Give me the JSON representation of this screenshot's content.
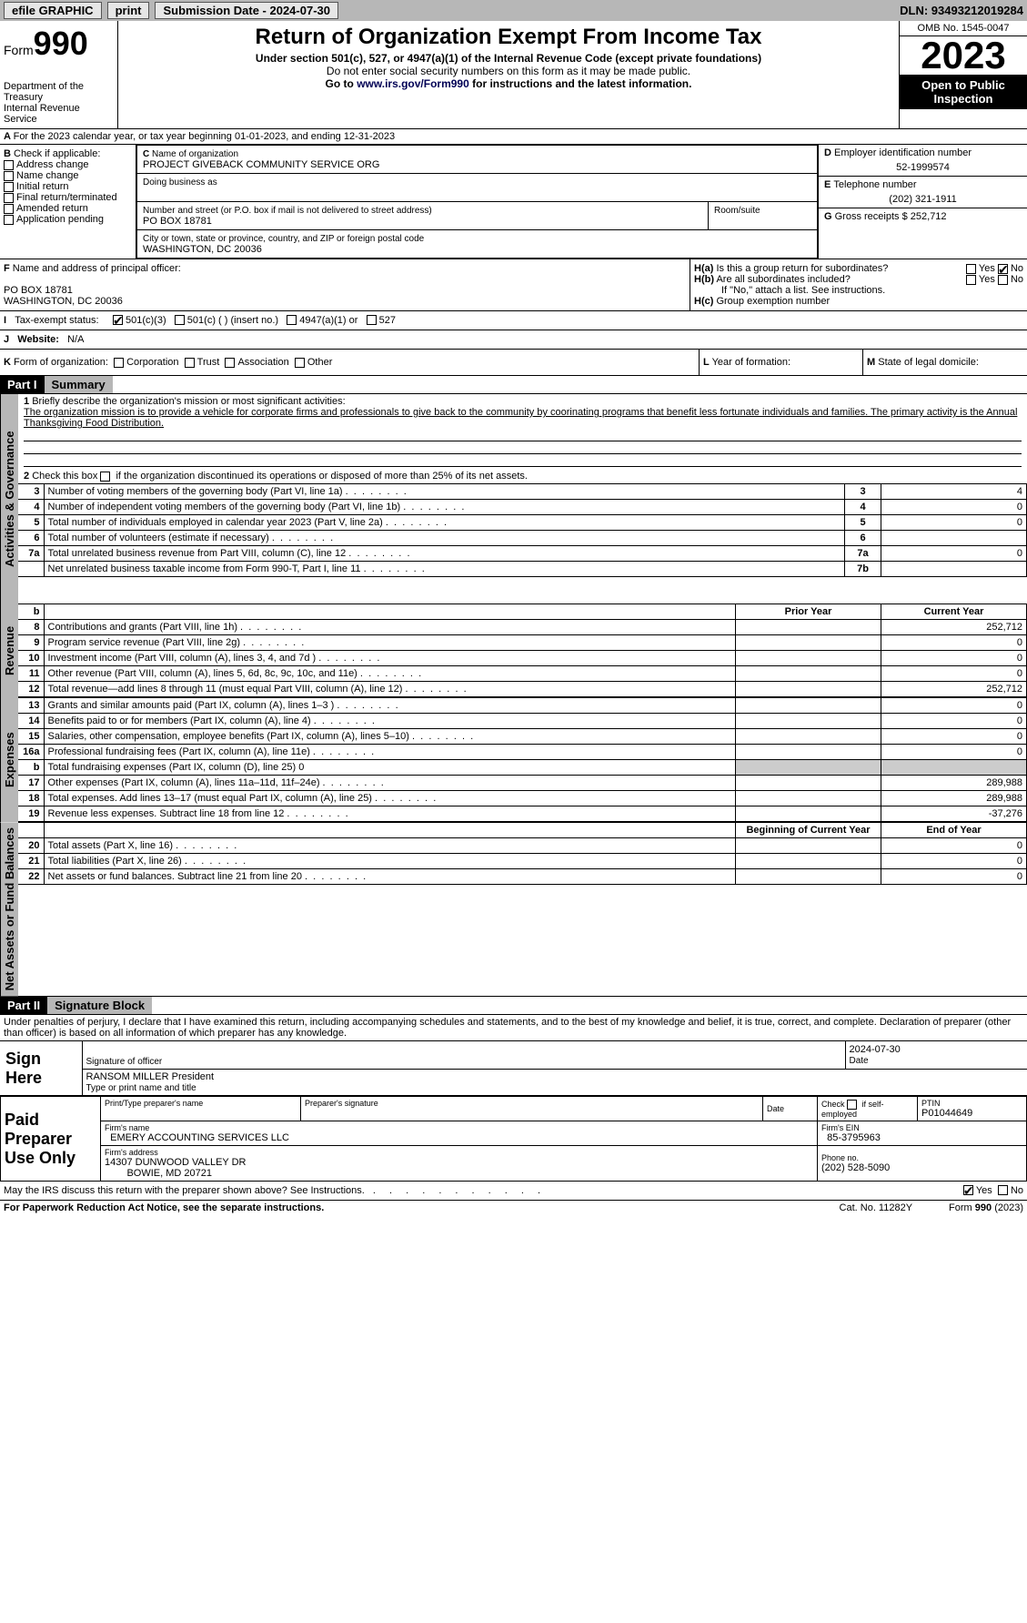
{
  "topbar": {
    "efile": "efile GRAPHIC",
    "print": "print",
    "sub_label": "Submission Date - 2024-07-30",
    "dln": "DLN: 93493212019284"
  },
  "header": {
    "form_label": "Form",
    "form_num": "990",
    "dept": "Department of the Treasury",
    "irs": "Internal Revenue Service",
    "title": "Return of Organization Exempt From Income Tax",
    "sub1": "Under section 501(c), 527, or 4947(a)(1) of the Internal Revenue Code (except private foundations)",
    "sub2": "Do not enter social security numbers on this form as it may be made public.",
    "sub3_pre": "Go to ",
    "sub3_link": "www.irs.gov/Form990",
    "sub3_post": " for instructions and the latest information.",
    "omb": "OMB No. 1545-0047",
    "year": "2023",
    "open": "Open to Public Inspection"
  },
  "A": {
    "text": "For the 2023 calendar year, or tax year beginning 01-01-2023",
    "end": ", and ending 12-31-2023"
  },
  "B": {
    "label": "Check if applicable:",
    "items": [
      "Address change",
      "Name change",
      "Initial return",
      "Final return/terminated",
      "Amended return",
      "Application pending"
    ]
  },
  "C": {
    "name_lbl": "Name of organization",
    "name": "PROJECT GIVEBACK COMMUNITY SERVICE ORG",
    "dba_lbl": "Doing business as",
    "street_lbl": "Number and street (or P.O. box if mail is not delivered to street address)",
    "street": "PO BOX 18781",
    "room_lbl": "Room/suite",
    "city_lbl": "City or town, state or province, country, and ZIP or foreign postal code",
    "city": "WASHINGTON, DC  20036"
  },
  "D": {
    "lbl": "Employer identification number",
    "val": "52-1999574"
  },
  "E": {
    "lbl": "Telephone number",
    "val": "(202) 321-1911"
  },
  "G": {
    "lbl": "Gross receipts $",
    "val": "252,712"
  },
  "F": {
    "lbl": "Name and address of principal officer:",
    "l1": "PO BOX 18781",
    "l2": "WASHINGTON, DC  20036"
  },
  "H": {
    "a": "Is this a group return for subordinates?",
    "b": "Are all subordinates included?",
    "note": "If \"No,\" attach a list. See instructions.",
    "c": "Group exemption number",
    "yes": "Yes",
    "no": "No"
  },
  "I": {
    "lbl": "Tax-exempt status:",
    "o1": "501(c)(3)",
    "o2": "501(c) (  ) (insert no.)",
    "o3": "4947(a)(1) or",
    "o4": "527"
  },
  "J": {
    "lbl": "Website:",
    "val": "N/A"
  },
  "K": {
    "lbl": "Form of organization:",
    "o1": "Corporation",
    "o2": "Trust",
    "o3": "Association",
    "o4": "Other"
  },
  "L": {
    "lbl": "Year of formation:"
  },
  "M": {
    "lbl": "State of legal domicile:"
  },
  "part1": {
    "hdr": "Part I",
    "title": "Summary",
    "l1_lbl": "Briefly describe the organization's mission or most significant activities:",
    "l1_txt": "The organization mission is to provide a vehicle for corporate firms and professionals to give back to the community by coorinating programs that benefit less fortunate individuals and families. The primary activity is the Annual Thanksgiving Food Distribution.",
    "l2": "Check this box      if the organization discontinued its operations or disposed of more than 25% of its net assets.",
    "tabs": {
      "ag": "Activities & Governance",
      "rev": "Revenue",
      "exp": "Expenses",
      "na": "Net Assets or Fund Balances"
    },
    "rows_ag": [
      {
        "n": "3",
        "d": "Number of voting members of the governing body (Part VI, line 1a)",
        "box": "3",
        "v": "4"
      },
      {
        "n": "4",
        "d": "Number of independent voting members of the governing body (Part VI, line 1b)",
        "box": "4",
        "v": "0"
      },
      {
        "n": "5",
        "d": "Total number of individuals employed in calendar year 2023 (Part V, line 2a)",
        "box": "5",
        "v": "0"
      },
      {
        "n": "6",
        "d": "Total number of volunteers (estimate if necessary)",
        "box": "6",
        "v": ""
      },
      {
        "n": "7a",
        "d": "Total unrelated business revenue from Part VIII, column (C), line 12",
        "box": "7a",
        "v": "0"
      },
      {
        "n": "",
        "d": "Net unrelated business taxable income from Form 990-T, Part I, line 11",
        "box": "7b",
        "v": ""
      }
    ],
    "col_prior": "Prior Year",
    "col_curr": "Current Year",
    "rows_rev": [
      {
        "n": "8",
        "d": "Contributions and grants (Part VIII, line 1h)",
        "p": "",
        "c": "252,712"
      },
      {
        "n": "9",
        "d": "Program service revenue (Part VIII, line 2g)",
        "p": "",
        "c": "0"
      },
      {
        "n": "10",
        "d": "Investment income (Part VIII, column (A), lines 3, 4, and 7d )",
        "p": "",
        "c": "0"
      },
      {
        "n": "11",
        "d": "Other revenue (Part VIII, column (A), lines 5, 6d, 8c, 9c, 10c, and 11e)",
        "p": "",
        "c": "0"
      },
      {
        "n": "12",
        "d": "Total revenue—add lines 8 through 11 (must equal Part VIII, column (A), line 12)",
        "p": "",
        "c": "252,712"
      }
    ],
    "rows_exp": [
      {
        "n": "13",
        "d": "Grants and similar amounts paid (Part IX, column (A), lines 1–3 )",
        "p": "",
        "c": "0"
      },
      {
        "n": "14",
        "d": "Benefits paid to or for members (Part IX, column (A), line 4)",
        "p": "",
        "c": "0"
      },
      {
        "n": "15",
        "d": "Salaries, other compensation, employee benefits (Part IX, column (A), lines 5–10)",
        "p": "",
        "c": "0"
      },
      {
        "n": "16a",
        "d": "Professional fundraising fees (Part IX, column (A), line 11e)",
        "p": "",
        "c": "0"
      }
    ],
    "row_b": {
      "n": "b",
      "d": "Total fundraising expenses (Part IX, column (D), line 25) 0"
    },
    "rows_exp2": [
      {
        "n": "17",
        "d": "Other expenses (Part IX, column (A), lines 11a–11d, 11f–24e)",
        "p": "",
        "c": "289,988"
      },
      {
        "n": "18",
        "d": "Total expenses. Add lines 13–17 (must equal Part IX, column (A), line 25)",
        "p": "",
        "c": "289,988"
      },
      {
        "n": "19",
        "d": "Revenue less expenses. Subtract line 18 from line 12",
        "p": "",
        "c": "-37,276"
      }
    ],
    "col_beg": "Beginning of Current Year",
    "col_end": "End of Year",
    "rows_na": [
      {
        "n": "20",
        "d": "Total assets (Part X, line 16)",
        "p": "",
        "c": "0"
      },
      {
        "n": "21",
        "d": "Total liabilities (Part X, line 26)",
        "p": "",
        "c": "0"
      },
      {
        "n": "22",
        "d": "Net assets or fund balances. Subtract line 21 from line 20",
        "p": "",
        "c": "0"
      }
    ]
  },
  "part2": {
    "hdr": "Part II",
    "title": "Signature Block",
    "decl": "Under penalties of perjury, I declare that I have examined this return, including accompanying schedules and statements, and to the best of my knowledge and belief, it is true, correct, and complete. Declaration of preparer (other than officer) is based on all information of which preparer has any knowledge."
  },
  "sign": {
    "here": "Sign Here",
    "sig_lbl": "Signature of officer",
    "name": "RANSOM MILLER  President",
    "name_lbl": "Type or print name and title",
    "date": "2024-07-30",
    "date_lbl": "Date"
  },
  "paid": {
    "hdr": "Paid Preparer Use Only",
    "c1": "Print/Type preparer's name",
    "c2": "Preparer's signature",
    "c3": "Date",
    "c4_pre": "Check",
    "c4_post": "if self-employed",
    "ptin_lbl": "PTIN",
    "ptin": "P01044649",
    "firm_name_lbl": "Firm's name",
    "firm_name": "EMERY ACCOUNTING SERVICES LLC",
    "firm_ein_lbl": "Firm's EIN",
    "firm_ein": "85-3795963",
    "firm_addr_lbl": "Firm's address",
    "firm_addr1": "14307 DUNWOOD VALLEY DR",
    "firm_addr2": "BOWIE, MD  20721",
    "phone_lbl": "Phone no.",
    "phone": "(202) 528-5090"
  },
  "footer": {
    "q": "May the IRS discuss this return with the preparer shown above? See Instructions.",
    "yes": "Yes",
    "no": "No",
    "pra": "For Paperwork Reduction Act Notice, see the separate instructions.",
    "cat": "Cat. No. 11282Y",
    "form": "Form 990 (2023)"
  }
}
